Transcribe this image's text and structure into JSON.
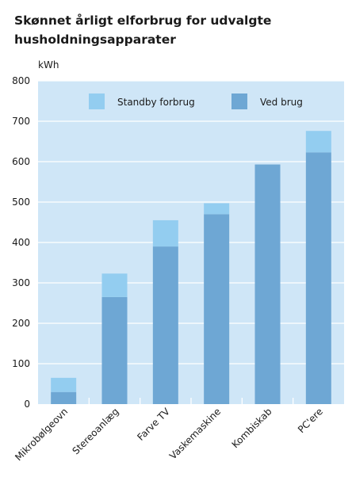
{
  "chart_data": {
    "type": "bar",
    "stacked": true,
    "title": "Skønnet årligt elforbrug for udvalgte husholdningsapparater",
    "ylabel": "kWh",
    "xlabel": "",
    "ylim": [
      0,
      800
    ],
    "yticks": [
      0,
      100,
      200,
      300,
      400,
      500,
      600,
      700,
      800
    ],
    "grid": true,
    "legend_position": "top",
    "categories": [
      "Mikrobølgeovn",
      "Stereoanlæg",
      "Farve TV",
      "Vaskemaskine",
      "Kombiskab",
      "PC'ere"
    ],
    "series": [
      {
        "name": "Ved brug",
        "color": "#6ea7d4",
        "values": [
          30,
          265,
          390,
          470,
          593,
          623
        ]
      },
      {
        "name": "Standby forbrug",
        "color": "#93cdf0",
        "values": [
          35,
          58,
          65,
          27,
          0,
          53
        ]
      }
    ],
    "legend_order": [
      "Standby forbrug",
      "Ved brug"
    ],
    "colors": {
      "plot_background": "#cfe6f7",
      "grid": "#ffffff"
    }
  }
}
